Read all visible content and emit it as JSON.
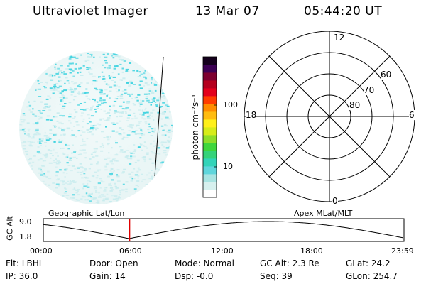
{
  "header": {
    "instrument": "Ultraviolet Imager",
    "date": "13 Mar 07",
    "time": "05:44:20 UT"
  },
  "colorbar": {
    "label": "photon cm⁻²s⁻¹",
    "ticks": [
      "100",
      "10"
    ],
    "colors": [
      "#ffffff",
      "#d6f0ee",
      "#a8e4e2",
      "#5fd6dc",
      "#33d4b9",
      "#35d37a",
      "#3fd63c",
      "#8ede2a",
      "#d6ec1a",
      "#fff01a",
      "#ffbc10",
      "#ff8c00",
      "#ff3c00",
      "#e3001c",
      "#b5001e",
      "#7d0030",
      "#3c0054",
      "#14001c"
    ]
  },
  "polar": {
    "mlt_labels": {
      "top": "12",
      "left": "18",
      "right": "6",
      "bottom": "0"
    },
    "lat_labels": [
      "60",
      "70",
      "80"
    ]
  },
  "timeline": {
    "ylabel": "GC Alt",
    "yticks": [
      "9.0",
      "1.8"
    ],
    "left_title": "Geographic Lat/Lon",
    "right_title": "Apex MLat/MLT",
    "xticks": [
      "00:00",
      "06:00",
      "12:00",
      "18:00",
      "23:59"
    ],
    "current_hour": 5.74,
    "marker_color": "#e00000"
  },
  "footer": {
    "flt": "Flt: LBHL",
    "ip": "IP: 36.0",
    "door": "Door: Open",
    "gain": "Gain: 14",
    "mode": "Mode: Normal",
    "dsp": "Dsp:   -0.0",
    "gcalt": "GC Alt: 2.3 Re",
    "seq": "Seq: 39",
    "glat": "GLat:  24.2",
    "glon": "GLon: 254.7"
  },
  "colors": {
    "aurora_cyan": "#3fd3e0",
    "glow_light": "#c8ecee"
  }
}
